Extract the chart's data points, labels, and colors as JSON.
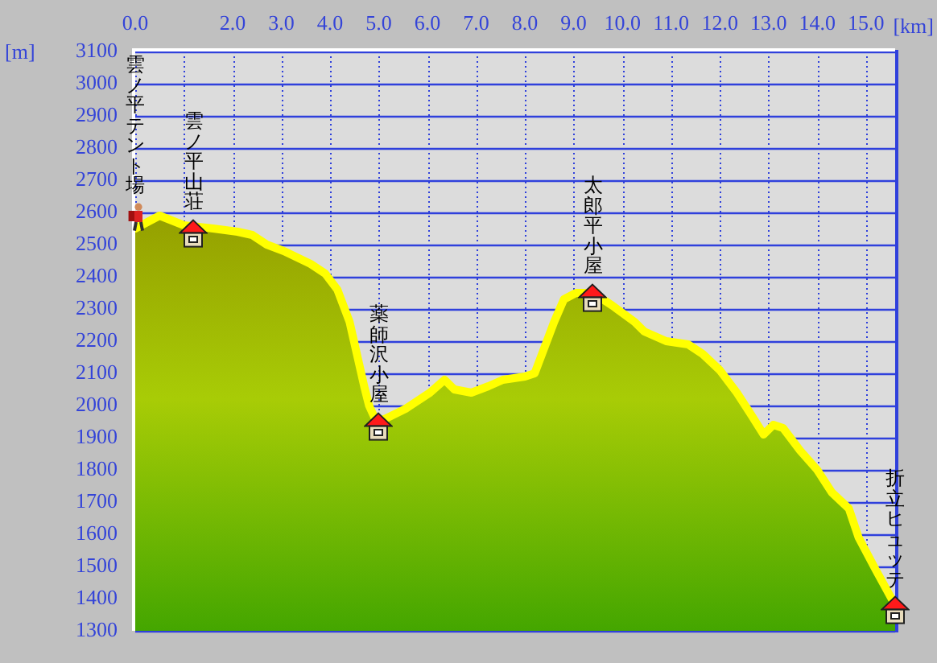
{
  "chart_data": {
    "type": "area",
    "xlabel": "[km]",
    "ylabel": "[m]",
    "x": [
      0,
      0.5,
      1.0,
      1.6,
      2.1,
      2.4,
      2.7,
      3.05,
      3.6,
      3.9,
      4.15,
      4.3,
      4.4,
      4.55,
      4.7,
      4.8,
      4.95,
      5.15,
      5.55,
      6.05,
      6.35,
      6.55,
      6.9,
      7.25,
      7.55,
      8.0,
      8.2,
      8.35,
      8.5,
      8.6,
      8.8,
      9.05,
      9.4,
      9.8,
      10.25,
      10.45,
      10.9,
      11.35,
      11.65,
      12.0,
      12.35,
      12.65,
      12.9,
      13.1,
      13.3,
      13.65,
      14.0,
      14.3,
      14.65,
      14.85,
      15.2,
      15.6
    ],
    "values": [
      2550,
      2590,
      2560,
      2550,
      2540,
      2530,
      2500,
      2480,
      2440,
      2410,
      2360,
      2300,
      2260,
      2160,
      2060,
      2000,
      1950,
      1960,
      1990,
      2040,
      2080,
      2050,
      2040,
      2060,
      2080,
      2090,
      2100,
      2160,
      2220,
      2260,
      2330,
      2350,
      2350,
      2310,
      2260,
      2230,
      2200,
      2190,
      2160,
      2110,
      2040,
      1970,
      1910,
      1940,
      1930,
      1860,
      1800,
      1730,
      1680,
      1590,
      1490,
      1380
    ],
    "color": "#ffff00",
    "xlim": [
      0,
      15.6
    ],
    "xticks": [
      {
        "value": 0,
        "label": "0.0"
      },
      {
        "value": 1,
        "label": null
      },
      {
        "value": 2,
        "label": "2.0"
      },
      {
        "value": 3,
        "label": "3.0"
      },
      {
        "value": 4,
        "label": "4.0"
      },
      {
        "value": 5,
        "label": "5.0"
      },
      {
        "value": 6,
        "label": "6.0"
      },
      {
        "value": 7,
        "label": "7.0"
      },
      {
        "value": 8,
        "label": "8.0"
      },
      {
        "value": 9,
        "label": "9.0"
      },
      {
        "value": 10,
        "label": "10.0"
      },
      {
        "value": 11,
        "label": "11.0"
      },
      {
        "value": 12,
        "label": "12.0"
      },
      {
        "value": 13,
        "label": "13.0"
      },
      {
        "value": 14,
        "label": "14.0"
      },
      {
        "value": 15,
        "label": "15.0"
      }
    ],
    "ylim": [
      1300,
      3100
    ],
    "yticks": [
      1300,
      1400,
      1500,
      1600,
      1700,
      1800,
      1900,
      2000,
      2100,
      2200,
      2300,
      2400,
      2500,
      2600,
      2700,
      2800,
      2900,
      3000,
      3100
    ],
    "grid": true,
    "annotations": [
      {
        "text": "雲ノ平テント場",
        "x": 0,
        "y": 2550
      },
      {
        "text": "雲ノ平山荘",
        "x": 1.2,
        "y": 2550
      },
      {
        "text": "薬師沢小屋",
        "x": 5.0,
        "y": 1950
      },
      {
        "text": "太郎平小屋",
        "x": 9.4,
        "y": 2350
      },
      {
        "text": "折立ヒュッテ",
        "x": 15.6,
        "y": 1380
      }
    ]
  }
}
